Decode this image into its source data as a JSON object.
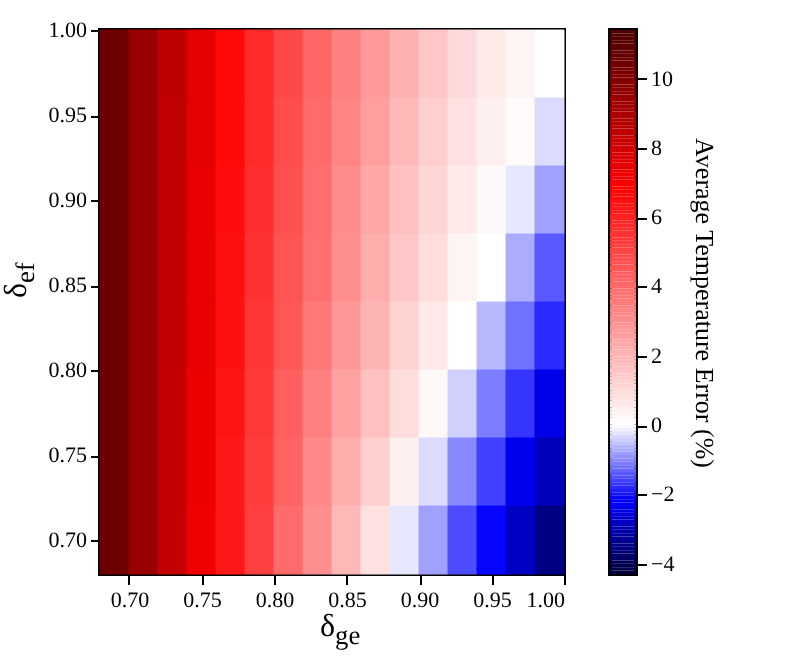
{
  "chart_data": {
    "type": "heatmap",
    "xlabel": "δ$_{ge}$",
    "ylabel": "δ$_{ef}$",
    "clabel": "Average Temperature Error (%)",
    "x": [
      0.69,
      0.71,
      0.73,
      0.75,
      0.77,
      0.79,
      0.81,
      0.83,
      0.85,
      0.87,
      0.89,
      0.91,
      0.93,
      0.95,
      0.97,
      0.99
    ],
    "cells": [
      [
        10.5,
        9.4,
        8.5,
        7.5,
        6.6,
        5.7,
        4.9,
        4.1,
        3.4,
        2.7,
        2.1,
        1.5,
        1.0,
        0.6,
        0.3,
        0.0
      ],
      [
        10.5,
        9.4,
        8.4,
        7.5,
        6.6,
        5.7,
        4.8,
        4.0,
        3.3,
        2.6,
        1.9,
        1.3,
        0.8,
        0.4,
        0.1,
        -0.3
      ],
      [
        10.5,
        9.4,
        8.4,
        7.4,
        6.5,
        5.6,
        4.7,
        3.9,
        3.1,
        2.4,
        1.7,
        1.1,
        0.6,
        0.2,
        -0.2,
        -0.8
      ],
      [
        10.5,
        9.4,
        8.4,
        7.4,
        6.4,
        5.5,
        4.6,
        3.8,
        3.0,
        2.2,
        1.5,
        0.9,
        0.3,
        0.0,
        -0.7,
        -1.4
      ],
      [
        10.5,
        9.4,
        8.4,
        7.4,
        6.4,
        5.4,
        4.5,
        3.6,
        2.8,
        2.0,
        1.2,
        0.6,
        0.0,
        -0.6,
        -1.2,
        -1.8
      ],
      [
        10.5,
        9.4,
        8.3,
        7.3,
        6.3,
        5.3,
        4.3,
        3.4,
        2.5,
        1.7,
        0.9,
        0.2,
        -0.4,
        -1.1,
        -1.7,
        -2.4
      ],
      [
        10.5,
        9.4,
        8.3,
        7.3,
        6.2,
        5.2,
        4.2,
        3.2,
        2.2,
        1.3,
        0.4,
        -0.3,
        -1.0,
        -1.6,
        -2.3,
        -2.9
      ],
      [
        10.5,
        9.4,
        8.3,
        7.2,
        6.2,
        5.1,
        4.0,
        3.0,
        1.9,
        0.8,
        -0.2,
        -0.8,
        -1.5,
        -2.1,
        -2.8,
        -3.5
      ]
    ],
    "xlim": [
      0.68,
      1.0
    ],
    "ylim": [
      0.68,
      1.0
    ],
    "xticks": [
      {
        "value": 0.7,
        "label": "0.70"
      },
      {
        "value": 0.75,
        "label": "0.75"
      },
      {
        "value": 0.8,
        "label": "0.80"
      },
      {
        "value": 0.85,
        "label": "0.85"
      },
      {
        "value": 0.9,
        "label": "0.90"
      },
      {
        "value": 0.95,
        "label": "0.95"
      },
      {
        "value": 1.0,
        "label": "1.00"
      }
    ],
    "yticks": [
      {
        "value": 0.7,
        "label": "0.70"
      },
      {
        "value": 0.75,
        "label": "0.75"
      },
      {
        "value": 0.8,
        "label": "0.80"
      },
      {
        "value": 0.85,
        "label": "0.85"
      },
      {
        "value": 0.9,
        "label": "0.90"
      },
      {
        "value": 0.95,
        "label": "0.95"
      },
      {
        "value": 1.0,
        "label": "1.00"
      }
    ],
    "clim": [
      -4.3,
      11.4
    ],
    "cticks": [
      {
        "value": -4,
        "label": "−4"
      },
      {
        "value": -2,
        "label": "−2"
      },
      0,
      2,
      4,
      6,
      8,
      10
    ]
  }
}
